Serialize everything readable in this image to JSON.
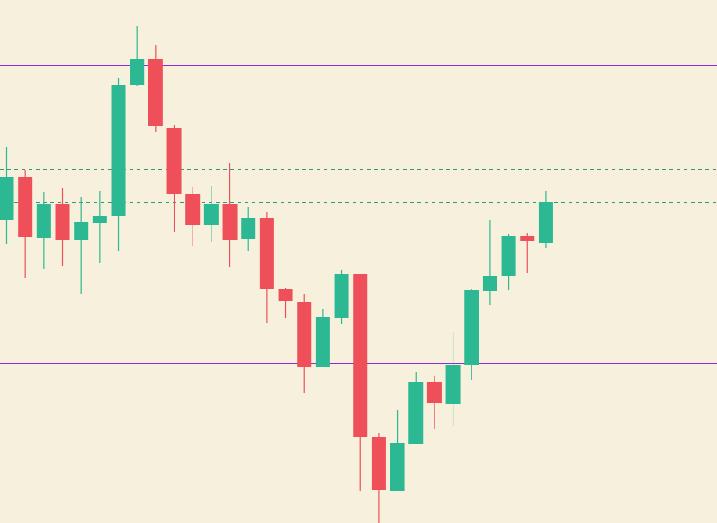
{
  "colors": {
    "background": "#f6f0dc",
    "bullish": "#2bb892",
    "bearish": "#ef4f58",
    "level_line": "#8a2be2",
    "dashed_line": "#2e9a7a"
  },
  "chart_data": {
    "type": "candlestick",
    "title": "",
    "xlabel": "",
    "ylabel": "",
    "grid": false,
    "ylim": [
      0,
      581
    ],
    "horizontal_lines": [
      {
        "y": 509,
        "style": "solid",
        "color": "#8a2be2"
      },
      {
        "y": 178,
        "style": "solid",
        "color": "#8a2be2"
      },
      {
        "y": 393,
        "style": "dashed",
        "color": "#2e9a7a"
      },
      {
        "y": 357,
        "style": "dashed",
        "color": "#2e9a7a"
      }
    ],
    "candles": [
      {
        "open": 337,
        "close": 384,
        "high": 418,
        "low": 310,
        "dir": "up"
      },
      {
        "open": 384,
        "close": 318,
        "high": 392,
        "low": 272,
        "dir": "down"
      },
      {
        "open": 317,
        "close": 354,
        "high": 368,
        "low": 282,
        "dir": "up"
      },
      {
        "open": 354,
        "close": 314,
        "high": 372,
        "low": 285,
        "dir": "down"
      },
      {
        "open": 314,
        "close": 334,
        "high": 362,
        "low": 254,
        "dir": "up"
      },
      {
        "open": 333,
        "close": 341,
        "high": 369,
        "low": 289,
        "dir": "up"
      },
      {
        "open": 341,
        "close": 487,
        "high": 494,
        "low": 302,
        "dir": "up"
      },
      {
        "open": 487,
        "close": 516,
        "high": 552,
        "low": 485,
        "dir": "up"
      },
      {
        "open": 516,
        "close": 441,
        "high": 531,
        "low": 434,
        "dir": "down"
      },
      {
        "open": 439,
        "close": 365,
        "high": 442,
        "low": 323,
        "dir": "down"
      },
      {
        "open": 365,
        "close": 331,
        "high": 373,
        "low": 308,
        "dir": "down"
      },
      {
        "open": 331,
        "close": 354,
        "high": 374,
        "low": 312,
        "dir": "up"
      },
      {
        "open": 354,
        "close": 314,
        "high": 400,
        "low": 284,
        "dir": "down"
      },
      {
        "open": 315,
        "close": 339,
        "high": 351,
        "low": 302,
        "dir": "up"
      },
      {
        "open": 339,
        "close": 260,
        "high": 346,
        "low": 222,
        "dir": "down"
      },
      {
        "open": 260,
        "close": 247,
        "high": 261,
        "low": 228,
        "dir": "down"
      },
      {
        "open": 246,
        "close": 173,
        "high": 254,
        "low": 144,
        "dir": "down"
      },
      {
        "open": 173,
        "close": 229,
        "high": 238,
        "low": 173,
        "dir": "up"
      },
      {
        "open": 228,
        "close": 277,
        "high": 281,
        "low": 221,
        "dir": "up"
      },
      {
        "open": 277,
        "close": 96,
        "high": 277,
        "low": 36,
        "dir": "down"
      },
      {
        "open": 96,
        "close": 37,
        "high": 100,
        "low": 0,
        "dir": "down"
      },
      {
        "open": 36,
        "close": 89,
        "high": 126,
        "low": 36,
        "dir": "up"
      },
      {
        "open": 88,
        "close": 157,
        "high": 168,
        "low": 88,
        "dir": "up"
      },
      {
        "open": 157,
        "close": 133,
        "high": 163,
        "low": 104,
        "dir": "down"
      },
      {
        "open": 132,
        "close": 176,
        "high": 212,
        "low": 108,
        "dir": "up"
      },
      {
        "open": 176,
        "close": 259,
        "high": 260,
        "low": 159,
        "dir": "up"
      },
      {
        "open": 258,
        "close": 274,
        "high": 337,
        "low": 242,
        "dir": "up"
      },
      {
        "open": 274,
        "close": 319,
        "high": 321,
        "low": 259,
        "dir": "up"
      },
      {
        "open": 319,
        "close": 313,
        "high": 322,
        "low": 278,
        "dir": "down"
      },
      {
        "open": 311,
        "close": 357,
        "high": 369,
        "low": 306,
        "dir": "up"
      }
    ]
  }
}
